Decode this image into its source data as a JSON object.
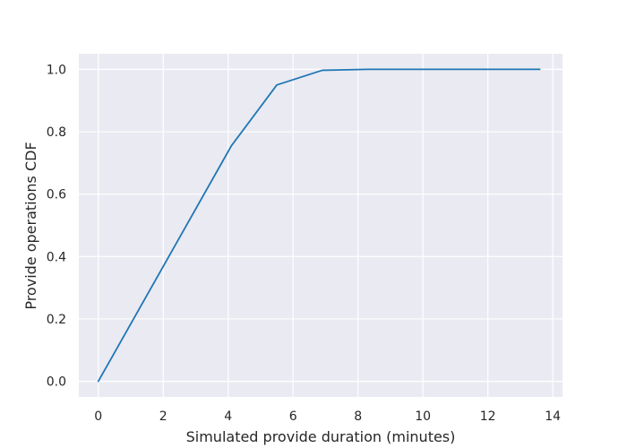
{
  "chart_data": {
    "type": "line",
    "title": "",
    "xlabel": "Simulated provide duration (minutes)",
    "ylabel": "Provide operations CDF",
    "xlim": [
      -0.6,
      14.3
    ],
    "ylim": [
      -0.05,
      1.05
    ],
    "xticks": [
      0,
      2,
      4,
      6,
      8,
      10,
      12,
      14
    ],
    "xtick_labels": [
      "0",
      "2",
      "4",
      "6",
      "8",
      "10",
      "12",
      "14"
    ],
    "yticks": [
      0.0,
      0.2,
      0.4,
      0.6,
      0.8,
      1.0
    ],
    "ytick_labels": [
      "0.0",
      "0.2",
      "0.4",
      "0.6",
      "0.8",
      "1.0"
    ],
    "grid": true,
    "background_color": "#eaeaf2",
    "grid_color": "#ffffff",
    "series": [
      {
        "color": "#1f77b4",
        "x": [
          0.0,
          4.1,
          5.5,
          6.9,
          8.3,
          9.7,
          11.1,
          12.5,
          13.6
        ],
        "y": [
          0.0,
          0.755,
          0.95,
          0.997,
          1.0,
          1.0,
          1.0,
          1.0,
          1.0
        ]
      }
    ]
  }
}
